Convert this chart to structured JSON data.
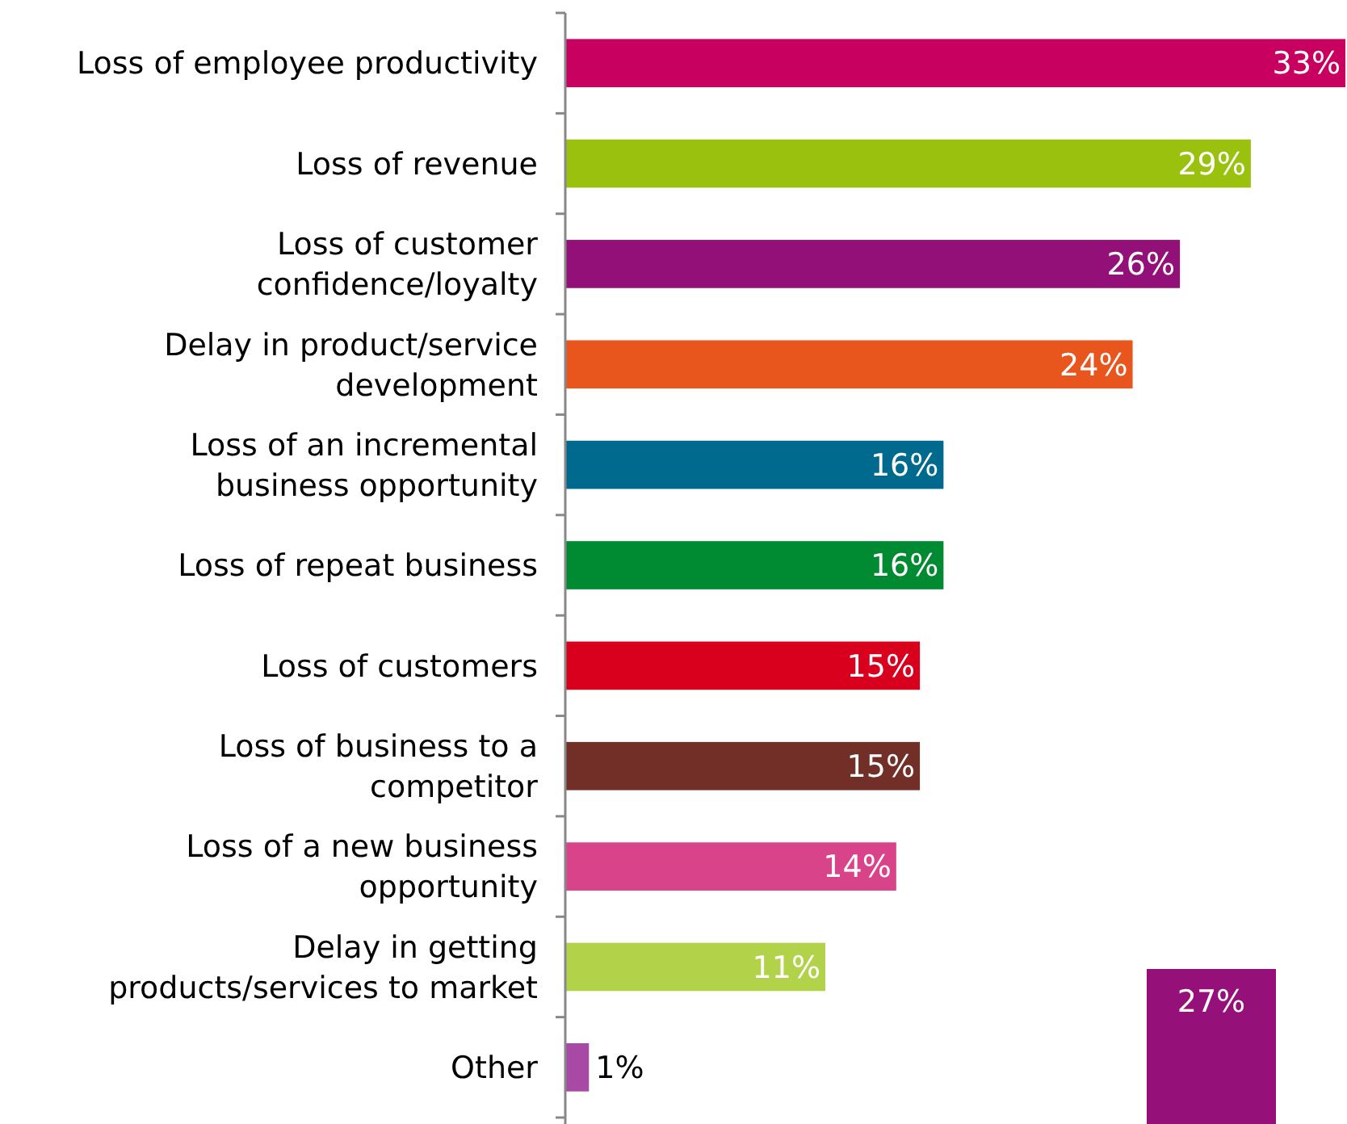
{
  "chart_data": {
    "type": "bar",
    "orientation": "horizontal",
    "categories": [
      "Loss of employee productivity",
      "Loss of revenue",
      "Loss of customer confidence/loyalty",
      "Delay in product/service development",
      "Loss of an incremental business opportunity",
      "Loss of repeat business",
      "Loss of customers",
      "Loss of business to a competitor",
      "Loss of a new business opportunity",
      "Delay in getting products/services to market",
      "Other"
    ],
    "values": [
      33,
      29,
      26,
      24,
      16,
      16,
      15,
      15,
      14,
      11,
      1
    ],
    "value_labels": [
      "33%",
      "29%",
      "26%",
      "24%",
      "16%",
      "16%",
      "15%",
      "15%",
      "14%",
      "11%",
      "1%"
    ],
    "colors": [
      "#c8005f",
      "#9bc10f",
      "#931078",
      "#e8561e",
      "#006a8e",
      "#008a32",
      "#d9001e",
      "#722f27",
      "#d9438a",
      "#b2d249",
      "#a84aa5"
    ],
    "annotations": [
      "27%"
    ]
  }
}
